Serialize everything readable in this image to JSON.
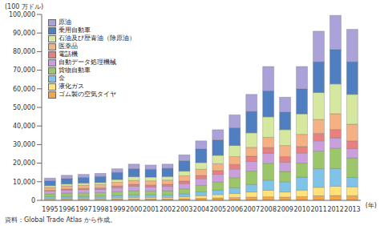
{
  "chart_data": {
    "type": "bar",
    "stacked": true,
    "grid": false,
    "legend": "top-left",
    "ylabel": "(100 万ドル)",
    "xlabel": "(年)",
    "annotations": [
      "資料：Global Trade Atlas から作成。"
    ],
    "categories": [
      "1995",
      "1996",
      "1997",
      "1998",
      "1999",
      "2000",
      "2001",
      "2002",
      "2003",
      "2004",
      "2005",
      "2006",
      "2007",
      "2008",
      "2009",
      "2010",
      "2011",
      "2012",
      "2013"
    ],
    "ylim": [
      0,
      100000
    ],
    "yticks": [
      0,
      {
        "value": 10000,
        "label": "10,000"
      },
      {
        "value": 20000,
        "label": "20,000"
      },
      {
        "value": 30000,
        "label": "30,000"
      },
      {
        "value": 40000,
        "label": "40,000"
      },
      {
        "value": 50000,
        "label": "50,000"
      },
      {
        "value": 60000,
        "label": "60,000"
      },
      {
        "value": 70000,
        "label": "70,000"
      },
      {
        "value": 80000,
        "label": "80,000"
      },
      {
        "value": 90000,
        "label": "90,000"
      },
      {
        "value": 100000,
        "label": "100,000"
      }
    ],
    "series": [
      {
        "name": "ゴム製の空気タイヤ",
        "color": "#f5a54a",
        "values": [
          600,
          700,
          700,
          700,
          800,
          800,
          800,
          800,
          900,
          1100,
          1300,
          1500,
          1700,
          1900,
          1700,
          2000,
          2500,
          2600,
          2500
        ]
      },
      {
        "name": "液化ガス",
        "color": "#ffe27a",
        "values": [
          500,
          500,
          500,
          500,
          600,
          800,
          800,
          800,
          1000,
          1400,
          1800,
          2200,
          2800,
          3500,
          2800,
          3500,
          4500,
          5000,
          4800
        ]
      },
      {
        "name": "金",
        "color": "#7fc4e8",
        "values": [
          900,
          1000,
          1000,
          1100,
          1200,
          1300,
          1300,
          1300,
          1600,
          2000,
          2400,
          3000,
          4000,
          5500,
          5500,
          7000,
          10000,
          9500,
          5000
        ]
      },
      {
        "name": "貨物自動車",
        "color": "#9bc76a",
        "values": [
          1500,
          1700,
          1800,
          1800,
          2000,
          2200,
          2100,
          2200,
          2700,
          3500,
          4300,
          5500,
          7200,
          9000,
          5500,
          7500,
          9500,
          11000,
          10500
        ]
      },
      {
        "name": "自動データ処理機械",
        "color": "#c9a0dc",
        "values": [
          1500,
          1700,
          1800,
          1900,
          2200,
          2500,
          2300,
          2400,
          2900,
          3700,
          4200,
          4700,
          5200,
          5500,
          5000,
          5500,
          5500,
          5500,
          5000
        ]
      },
      {
        "name": "電話機",
        "color": "#e88080",
        "values": [
          400,
          500,
          600,
          700,
          900,
          1000,
          1000,
          1100,
          1300,
          1700,
          2000,
          2400,
          2800,
          3000,
          3000,
          3500,
          4000,
          4500,
          4200
        ]
      },
      {
        "name": "医薬品",
        "color": "#f4b183",
        "values": [
          1500,
          1600,
          1700,
          1800,
          2000,
          2100,
          2200,
          2300,
          2800,
          3300,
          3700,
          4200,
          4800,
          5500,
          6000,
          6500,
          7500,
          8500,
          9000
        ]
      },
      {
        "name": "石油及び歴青油（除原油）",
        "color": "#d6e8a0",
        "values": [
          1000,
          1100,
          1200,
          1100,
          1500,
          2000,
          2000,
          1900,
          2500,
          3600,
          4500,
          6000,
          7800,
          11000,
          8500,
          11000,
          14500,
          16000,
          16000
        ]
      },
      {
        "name": "乗用自動車",
        "color": "#4f7fc0",
        "values": [
          2600,
          2900,
          3000,
          3200,
          3800,
          4300,
          4200,
          4400,
          5600,
          7300,
          8300,
          9500,
          11500,
          14000,
          9500,
          13500,
          16500,
          18500,
          17500
        ]
      },
      {
        "name": "原油",
        "color": "#aaa2d8",
        "values": [
          1500,
          1800,
          1700,
          1700,
          2000,
          2500,
          2300,
          2300,
          3200,
          4400,
          5500,
          7000,
          9200,
          13100,
          8000,
          12000,
          16500,
          18400,
          17500
        ]
      }
    ]
  }
}
